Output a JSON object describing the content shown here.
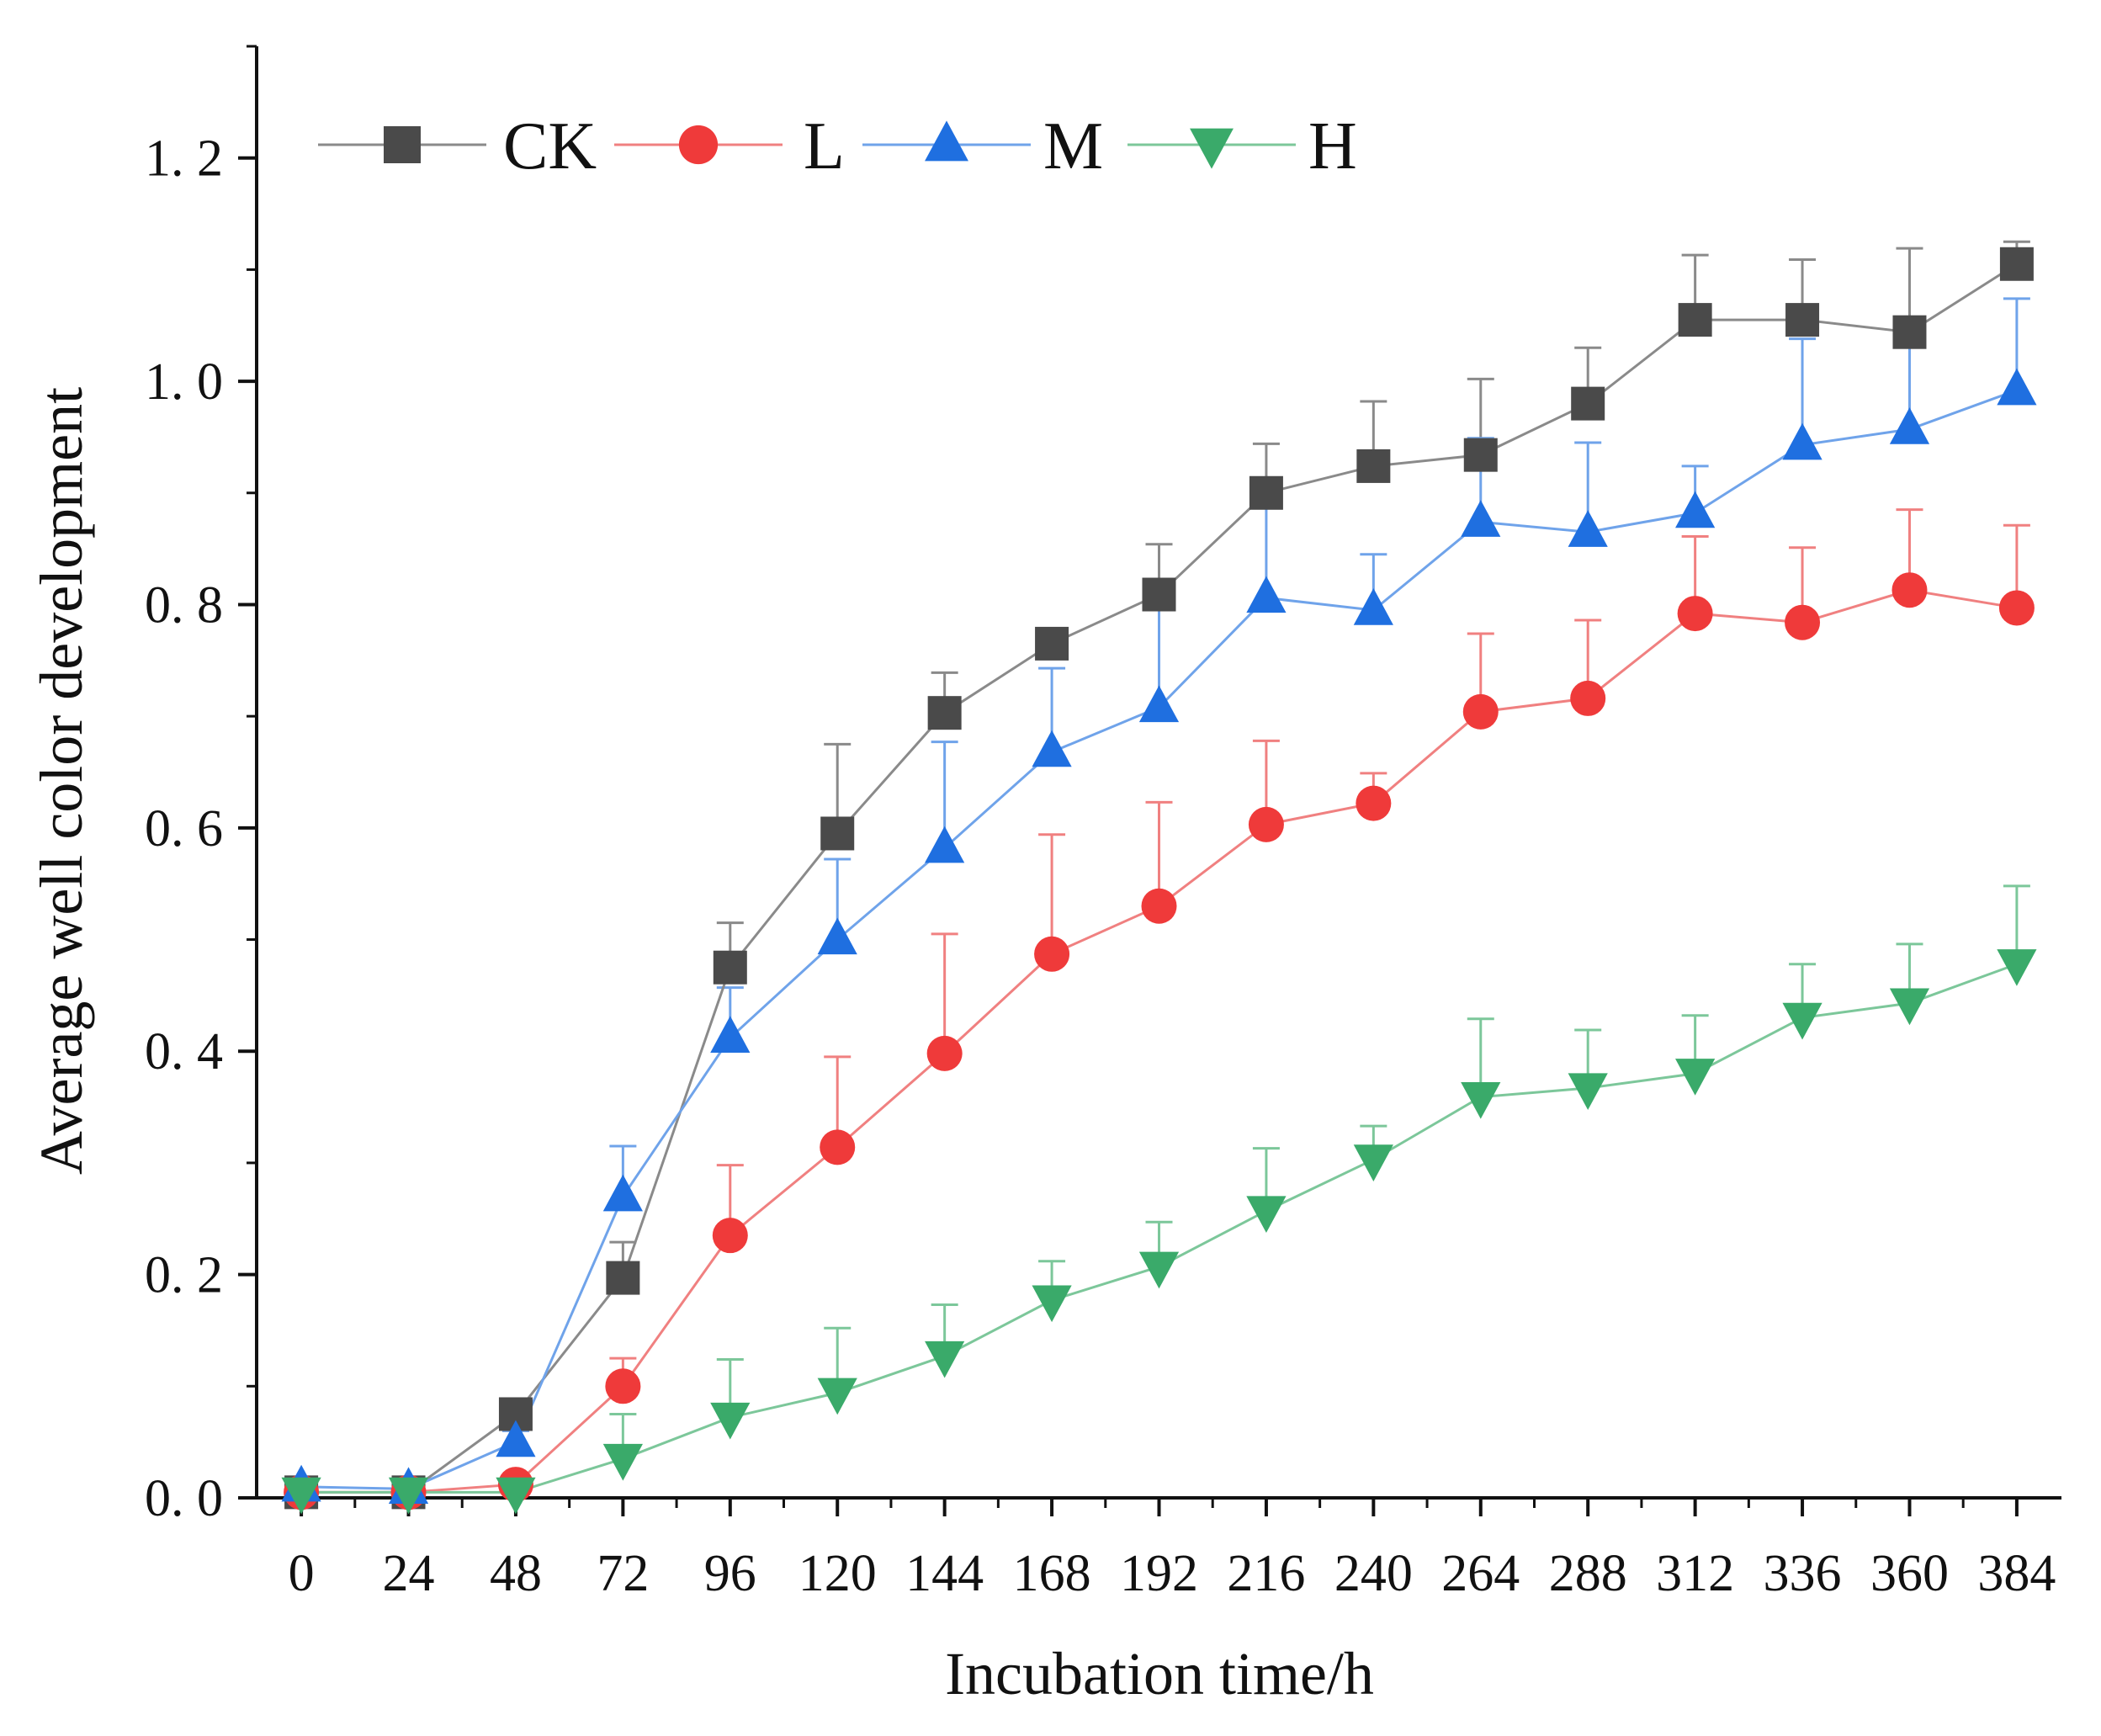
{
  "chart_data": {
    "type": "line",
    "title": "",
    "xlabel": "Incubation time/h",
    "ylabel": "Average well color development",
    "x": [
      0,
      24,
      48,
      72,
      96,
      120,
      144,
      168,
      192,
      216,
      240,
      264,
      288,
      312,
      336,
      360,
      384
    ],
    "x_tick_labels": [
      "0",
      "24",
      "48",
      "72",
      "96",
      "120",
      "144",
      "168",
      "192",
      "216",
      "240",
      "264",
      "288",
      "312",
      "336",
      "360",
      "384"
    ],
    "xlim": [
      -10,
      394
    ],
    "ylim": [
      0.0,
      1.3
    ],
    "y_ticks": [
      0.0,
      0.2,
      0.4,
      0.6,
      0.8,
      1.0,
      1.2
    ],
    "y_tick_labels": [
      "0. 0",
      "0. 2",
      "0. 4",
      "0. 6",
      "0. 8",
      "1. 0",
      "1. 2"
    ],
    "grid": false,
    "legend_position": "top-left",
    "series": [
      {
        "name": "CK",
        "marker": "square",
        "color": "#4a4a4a",
        "line_color": "#8a8a8a",
        "values": [
          0.005,
          0.005,
          0.075,
          0.197,
          0.475,
          0.595,
          0.703,
          0.765,
          0.809,
          0.9,
          0.924,
          0.934,
          0.98,
          1.055,
          1.055,
          1.044,
          1.105
        ],
        "errors": [
          0.004,
          0.004,
          0.008,
          0.032,
          0.04,
          0.08,
          0.036,
          0.0,
          0.045,
          0.044,
          0.058,
          0.068,
          0.05,
          0.058,
          0.054,
          0.075,
          0.02
        ]
      },
      {
        "name": "L",
        "marker": "circle",
        "color": "#ef3a3a",
        "line_color": "#f08080",
        "values": [
          0.005,
          0.005,
          0.012,
          0.1,
          0.235,
          0.314,
          0.398,
          0.487,
          0.53,
          0.603,
          0.622,
          0.704,
          0.716,
          0.792,
          0.784,
          0.813,
          0.797
        ],
        "errors": [
          0.003,
          0.003,
          0.006,
          0.025,
          0.063,
          0.081,
          0.107,
          0.107,
          0.093,
          0.075,
          0.027,
          0.07,
          0.07,
          0.069,
          0.067,
          0.072,
          0.074
        ]
      },
      {
        "name": "M",
        "marker": "triangle-up",
        "color": "#1f6fe0",
        "line_color": "#6fa3ea",
        "values": [
          0.01,
          0.008,
          0.05,
          0.27,
          0.412,
          0.5,
          0.582,
          0.668,
          0.708,
          0.806,
          0.795,
          0.874,
          0.865,
          0.882,
          0.943,
          0.957,
          0.992
        ],
        "errors": [
          0.004,
          0.004,
          0.01,
          0.045,
          0.045,
          0.072,
          0.095,
          0.075,
          0.09,
          0.095,
          0.05,
          0.075,
          0.08,
          0.042,
          0.095,
          0.075,
          0.082
        ]
      },
      {
        "name": "H",
        "marker": "triangle-down",
        "color": "#3aaa6a",
        "line_color": "#7cc79a",
        "values": [
          0.005,
          0.005,
          0.005,
          0.035,
          0.072,
          0.094,
          0.127,
          0.177,
          0.207,
          0.257,
          0.303,
          0.359,
          0.367,
          0.38,
          0.43,
          0.443,
          0.478
        ],
        "errors": [
          0.003,
          0.003,
          0.004,
          0.04,
          0.052,
          0.058,
          0.046,
          0.035,
          0.04,
          0.056,
          0.03,
          0.07,
          0.052,
          0.052,
          0.048,
          0.053,
          0.07
        ]
      }
    ]
  }
}
